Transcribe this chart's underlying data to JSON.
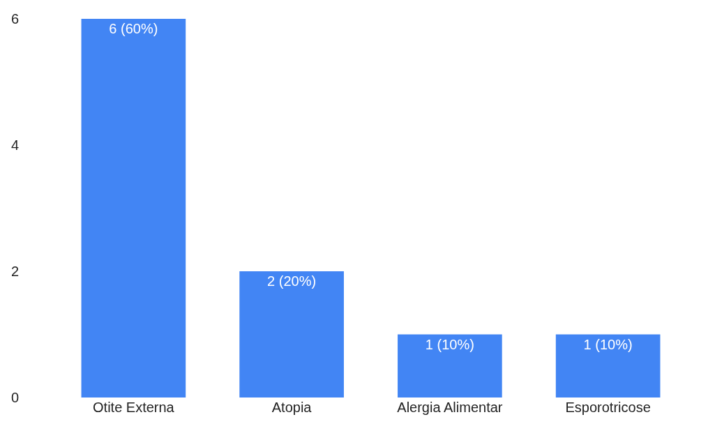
{
  "chart_data": {
    "type": "bar",
    "categories": [
      "Otite Externa",
      "Atopia",
      "Alergia Alimentar",
      "Esporotricose"
    ],
    "values": [
      6,
      2,
      1,
      1
    ],
    "value_labels": [
      "6 (60%)",
      "2 (20%)",
      "1 (10%)",
      "1 (10%)"
    ],
    "color": "#4285f4",
    "ylim": [
      0,
      6
    ],
    "yticks": [
      0,
      2,
      4,
      6
    ]
  }
}
